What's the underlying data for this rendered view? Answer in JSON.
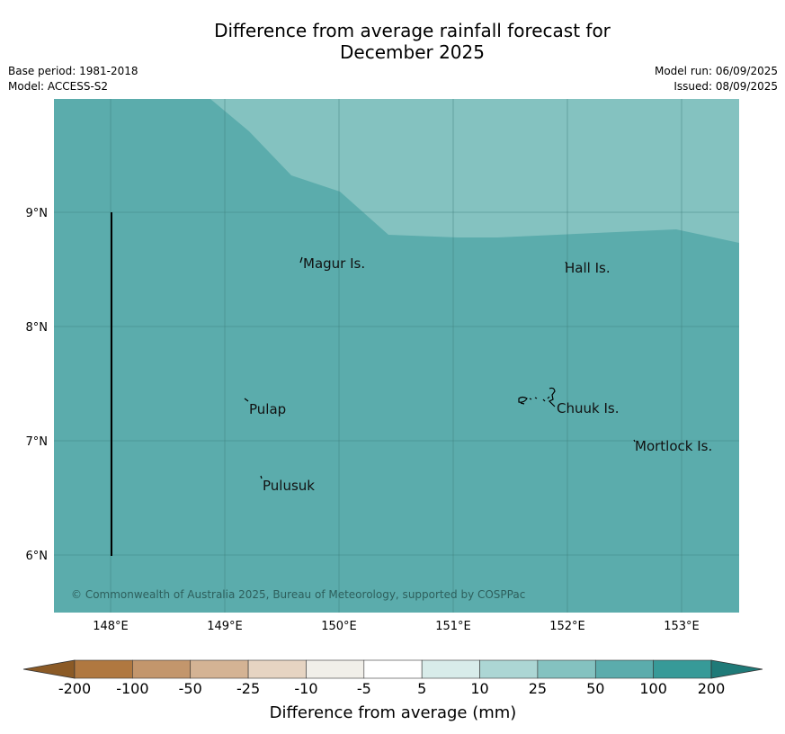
{
  "header": {
    "title_line1": "Difference from average rainfall forecast for",
    "title_line2": "December 2025",
    "base_period": "Base period: 1981-2018",
    "model": "Model: ACCESS-S2",
    "model_run": "Model run: 06/09/2025",
    "issued": "Issued: 08/09/2025"
  },
  "map": {
    "lon_ticks": [
      "148°E",
      "149°E",
      "150°E",
      "151°E",
      "152°E",
      "153°E"
    ],
    "lat_ticks": [
      "9°N",
      "8°N",
      "7°N",
      "6°N"
    ],
    "places": [
      "Magur Is.",
      "Hall Is.",
      "Pulap",
      "Chuuk Is.",
      "Mortlock Is.",
      "Pulusuk"
    ],
    "copyright": "© Commonwealth of Australia 2025, Bureau of Meteorology, supported by COSPPac",
    "colors": {
      "anomaly_50_100": "#5bacac",
      "anomaly_25_50": "#84c2c0",
      "gridline": "#3f7f7d"
    }
  },
  "colorbar": {
    "labels": [
      "-200",
      "-100",
      "-50",
      "-25",
      "-10",
      "-5",
      "5",
      "10",
      "25",
      "50",
      "100",
      "200"
    ],
    "colors": [
      "#8b5a26",
      "#b07840",
      "#c3966c",
      "#d4b394",
      "#e6d4c2",
      "#f1efe9",
      "#ffffff",
      "#d8ecea",
      "#acd6d4",
      "#84c2c0",
      "#5bacac",
      "#379a98",
      "#1f7a78"
    ],
    "title": "Difference from average (mm)"
  }
}
